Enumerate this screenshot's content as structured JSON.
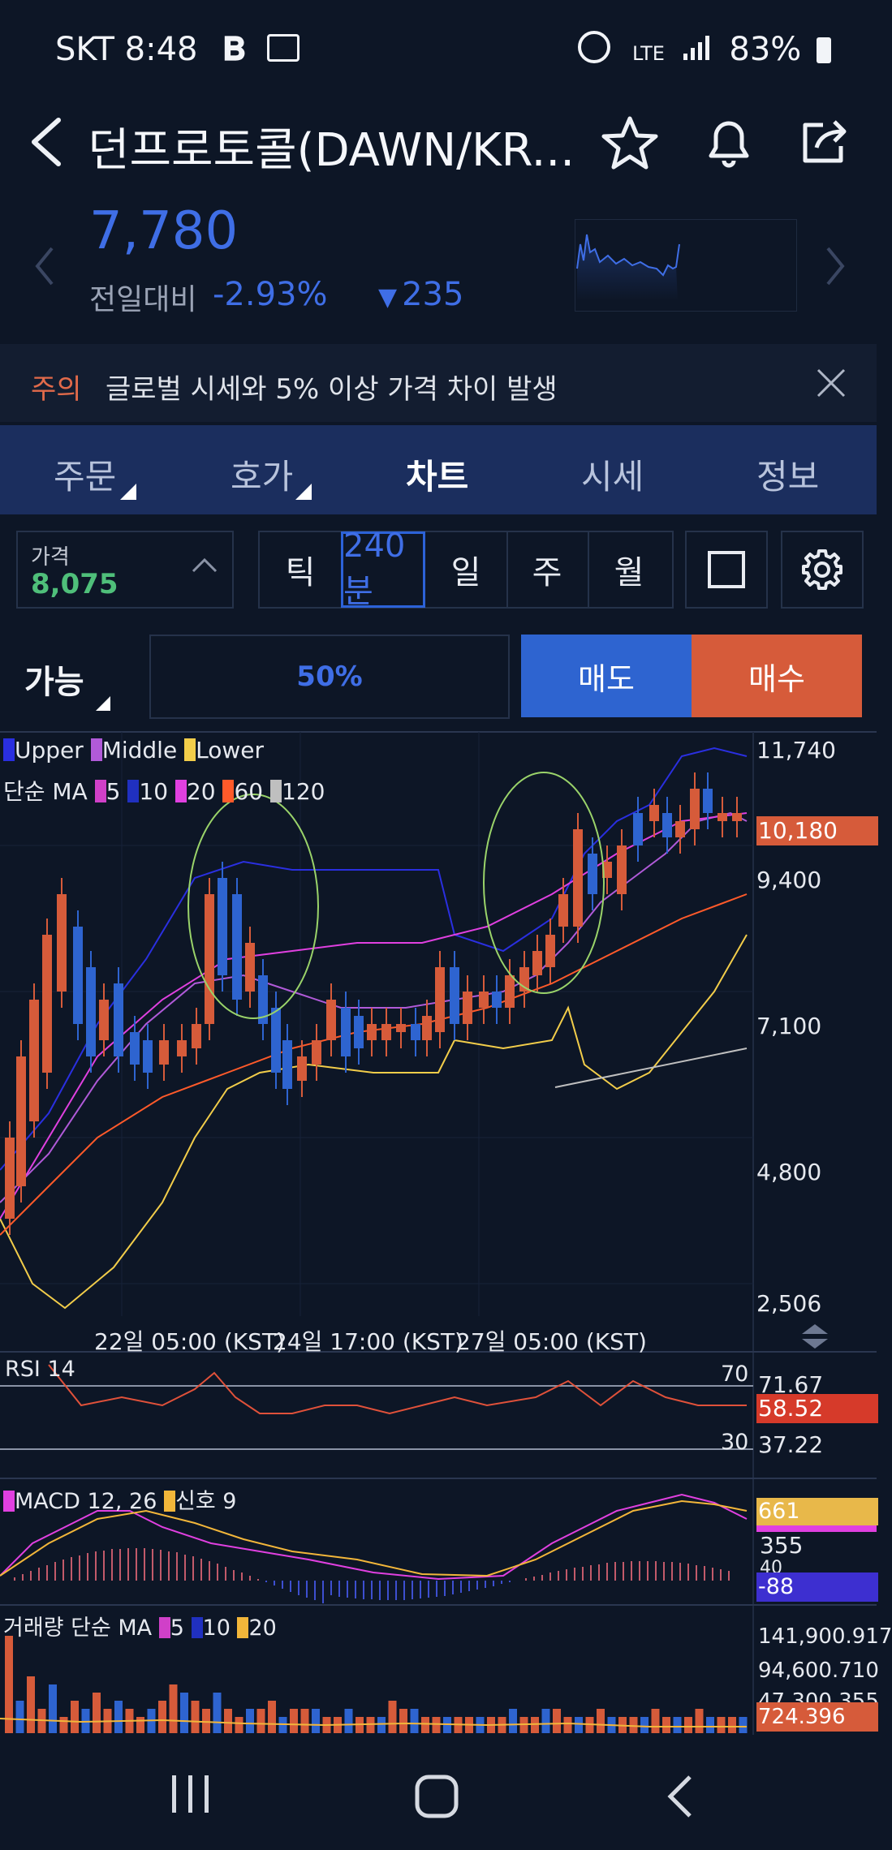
{
  "status_bar": {
    "left_text": "SKT 8:48",
    "right_text": "83%"
  },
  "header": {
    "title": "던프로토콜(DAWN/KR...",
    "price": "7,780",
    "compare_label": "전일대비",
    "change_pct": "-2.93%",
    "change_abs": "235"
  },
  "notice": {
    "tag": "주의",
    "message": "글로벌 시세와 5% 이상 가격 차이 발생"
  },
  "tabs": [
    {
      "label": "주문"
    },
    {
      "label": "호가"
    },
    {
      "label": "차트"
    },
    {
      "label": "시세"
    },
    {
      "label": "정보"
    }
  ],
  "toolbar": {
    "price_label": "가격",
    "price_value": "8,075",
    "intervals": [
      "틱",
      "240분",
      "일",
      "주",
      "월"
    ],
    "active_interval": "240분"
  },
  "trade": {
    "available_label": "가능",
    "percent": "50%",
    "sell": "매도",
    "buy": "매수"
  },
  "chart": {
    "legend_bb": [
      "Upper",
      "Middle",
      "Lower"
    ],
    "legend_ma_prefix": "단순 MA",
    "legend_ma": [
      "5",
      "10",
      "20",
      "60",
      "120"
    ],
    "y_ticks": [
      "11,740",
      "9,400",
      "7,100",
      "4,800",
      "2,506"
    ],
    "current_tag": "10,180",
    "x_labels": [
      "22일 05:00 (KST)",
      "24일 17:00 (KST)",
      "27일 05:00 (KST)"
    ],
    "rsi_label": "RSI 14",
    "rsi_70": "70",
    "rsi_30": "30",
    "rsi_axis": [
      "71.67",
      "37.22"
    ],
    "rsi_value": "58.52",
    "macd_label": "MACD 12, 26",
    "macd_signal_label": "신호 9",
    "macd_axis": [
      "355",
      "40"
    ],
    "macd_value": "661",
    "macd_value2": "-88",
    "vol_label": "거래량 단순 MA",
    "vol_ma": [
      "5",
      "10",
      "20"
    ],
    "vol_axis": [
      "141,900.917",
      "94,600.710",
      "47,300.355"
    ],
    "vol_value": "724.396"
  },
  "colors": {
    "accent_blue": "#3f6ee6",
    "down_blue": "#2e64d0",
    "up_red": "#d65b3a",
    "bb_upper": "#2a2fe0",
    "bb_middle": "#b05ad8",
    "bb_lower": "#f2cd4a",
    "ma60": "#ff5a2a",
    "ma120": "#bfbfbf"
  }
}
